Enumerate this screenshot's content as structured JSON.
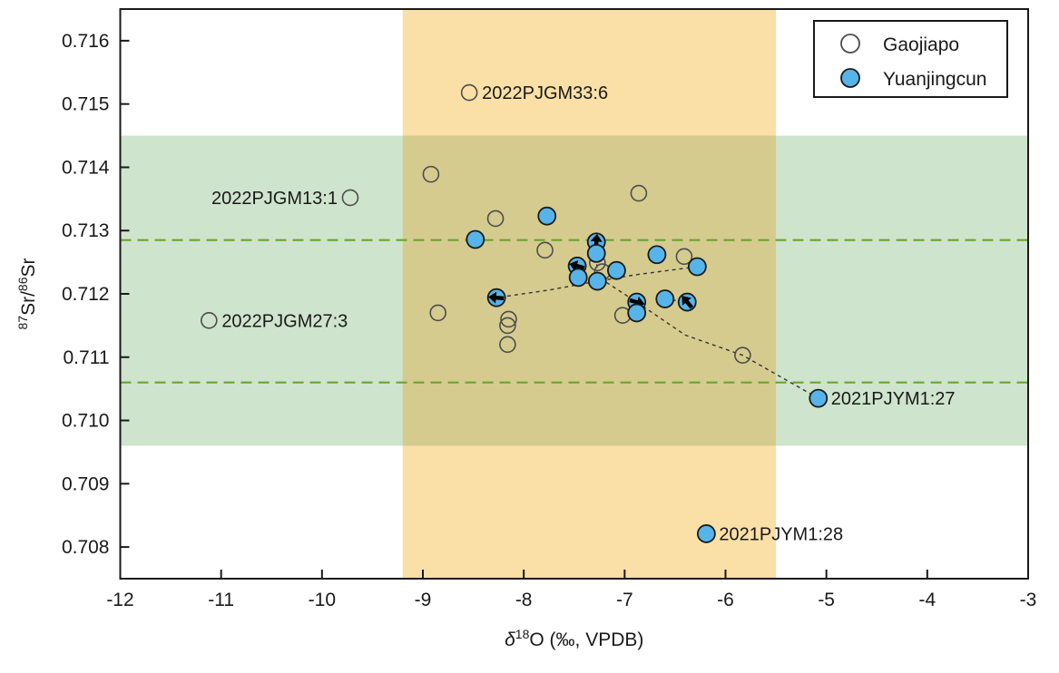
{
  "chart_data": {
    "type": "scatter",
    "title": "",
    "xlabel": {
      "text": "δ18O (‰, VPDB)",
      "italic_prefix": "δ",
      "superscript": "18",
      "rest": "O (‰, VPDB)"
    },
    "ylabel": {
      "text": "87Sr/86Sr",
      "sup1": "87",
      "mid": "Sr/",
      "sup2": "86",
      "end": "Sr"
    },
    "xlim": [
      -12,
      -3
    ],
    "ylim": [
      0.7075,
      0.7165
    ],
    "x_ticks": [
      -12,
      -11,
      -10,
      -9,
      -8,
      -7,
      -6,
      -5,
      -4,
      -3
    ],
    "y_ticks": [
      0.716,
      0.715,
      0.714,
      0.713,
      0.712,
      0.711,
      0.71,
      0.709,
      0.708
    ],
    "grid": false,
    "legend_position": "top-right",
    "bands": {
      "green_y_range": [
        0.7096,
        0.7145
      ],
      "orange_x_range": [
        -9.2,
        -5.5
      ]
    },
    "dashed_lines_y": [
      0.71285,
      0.7106
    ],
    "series": [
      {
        "name": "Gaojiapo",
        "marker": "open",
        "points": [
          {
            "x": -8.54,
            "y": 0.71518,
            "label": "2022PJGM33:6",
            "label_side": "right"
          },
          {
            "x": -9.72,
            "y": 0.71352,
            "label": "2022PJGM13:1",
            "label_side": "left"
          },
          {
            "x": -11.12,
            "y": 0.71158,
            "label": "2022PJGM27:3",
            "label_side": "right"
          },
          {
            "x": -8.92,
            "y": 0.71389
          },
          {
            "x": -8.28,
            "y": 0.71319
          },
          {
            "x": -7.79,
            "y": 0.71269
          },
          {
            "x": -6.86,
            "y": 0.71359
          },
          {
            "x": -7.27,
            "y": 0.71249
          },
          {
            "x": -7.22,
            "y": 0.71235
          },
          {
            "x": -8.85,
            "y": 0.7117
          },
          {
            "x": -8.15,
            "y": 0.7116
          },
          {
            "x": -8.16,
            "y": 0.7115
          },
          {
            "x": -8.16,
            "y": 0.7112
          },
          {
            "x": -7.02,
            "y": 0.71166
          },
          {
            "x": -6.41,
            "y": 0.71259
          },
          {
            "x": -5.83,
            "y": 0.71103
          }
        ]
      },
      {
        "name": "Yuanjingcun",
        "marker": "filled",
        "points": [
          {
            "x": -7.77,
            "y": 0.71323
          },
          {
            "x": -8.48,
            "y": 0.71286
          },
          {
            "x": -7.28,
            "y": 0.71282,
            "arrow_deg": -85
          },
          {
            "x": -7.28,
            "y": 0.71264
          },
          {
            "x": -7.47,
            "y": 0.71244,
            "arrow_deg": 195
          },
          {
            "x": -7.46,
            "y": 0.71226
          },
          {
            "x": -7.27,
            "y": 0.7122
          },
          {
            "x": -7.08,
            "y": 0.71237
          },
          {
            "x": -6.68,
            "y": 0.71262
          },
          {
            "x": -6.28,
            "y": 0.71243
          },
          {
            "x": -8.27,
            "y": 0.71194,
            "arrow_deg": 185
          },
          {
            "x": -6.88,
            "y": 0.71187,
            "arrow_deg": 15
          },
          {
            "x": -6.88,
            "y": 0.7117
          },
          {
            "x": -6.6,
            "y": 0.71192
          },
          {
            "x": -6.38,
            "y": 0.71187,
            "arrow_deg": 230
          },
          {
            "x": -5.08,
            "y": 0.71035,
            "label": "2021PJYM1:27",
            "label_side": "right"
          },
          {
            "x": -6.19,
            "y": 0.70821,
            "label": "2021PJYM1:28",
            "label_side": "right"
          }
        ]
      }
    ],
    "connectors": [
      [
        [
          -6.28,
          0.71243
        ],
        [
          -6.9,
          0.7123
        ],
        [
          -7.27,
          0.7122
        ],
        [
          -7.75,
          0.71206
        ],
        [
          -8.27,
          0.71194
        ]
      ],
      [
        [
          -7.27,
          0.71218
        ],
        [
          -7.28,
          0.71272
        ]
      ],
      [
        [
          -7.18,
          0.71218
        ],
        [
          -6.88,
          0.71187
        ],
        [
          -6.4,
          0.71135
        ],
        [
          -5.83,
          0.71103
        ],
        [
          -5.08,
          0.71035
        ]
      ],
      [
        [
          -6.6,
          0.71192
        ],
        [
          -6.38,
          0.71187
        ]
      ]
    ],
    "legend": {
      "items": [
        {
          "label": "Gaojiapo",
          "marker": "open"
        },
        {
          "label": "Yuanjingcun",
          "marker": "filled"
        }
      ]
    }
  },
  "colors": {
    "blue_marker_fill": "#56b4e9",
    "marker_stroke": "#1a1a1a",
    "open_marker_stroke": "#4d4d4d",
    "green_band": "#cfe4cd",
    "orange_band": "#fadfa6",
    "overlap_band": "#d5cb8f",
    "dashed_line_green": "#68a42e",
    "connector": "#333333",
    "axis": "#1a1a1a",
    "legend_bg": "#ffffff"
  }
}
